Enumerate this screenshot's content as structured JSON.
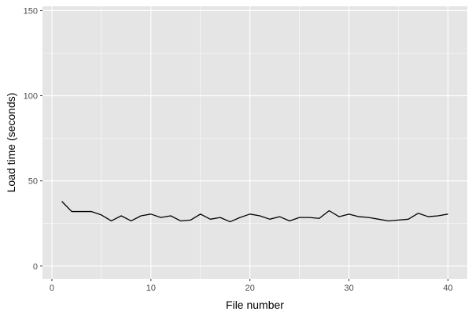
{
  "chart_data": {
    "type": "line",
    "title": "",
    "xlabel": "File number",
    "ylabel": "Load time (seconds)",
    "xlim": [
      -0.95,
      41.95
    ],
    "ylim": [
      -7.5,
      152.5
    ],
    "x_ticks": [
      0,
      10,
      20,
      30,
      40
    ],
    "y_ticks": [
      0,
      50,
      100,
      150
    ],
    "x_tick_labels": [
      "0",
      "10",
      "20",
      "30",
      "40"
    ],
    "y_tick_labels": [
      "0",
      "50",
      "100",
      "150"
    ],
    "grid": true,
    "legend": "none",
    "colors": {
      "panel_background": "#e5e5e5",
      "grid_major": "#ffffff",
      "line": "#000000",
      "tick_text": "#4d4d4d"
    },
    "series": [
      {
        "x": [
          1,
          2,
          3,
          4,
          5,
          6,
          7,
          8,
          9,
          10,
          11,
          12,
          13,
          14,
          15,
          16,
          17,
          18,
          19,
          20,
          21,
          22,
          23,
          24,
          25,
          26,
          27,
          28,
          29,
          30,
          31,
          32,
          33,
          34,
          35,
          36,
          37,
          38,
          39,
          40
        ],
        "values": [
          38.0,
          32.0,
          32.0,
          32.0,
          30.0,
          26.5,
          29.5,
          26.5,
          29.5,
          30.5,
          28.5,
          29.5,
          26.5,
          27.0,
          30.5,
          27.5,
          28.5,
          26.0,
          28.5,
          30.5,
          29.5,
          27.5,
          29.0,
          26.5,
          28.5,
          28.5,
          28.0,
          32.5,
          29.0,
          30.5,
          29.0,
          28.5,
          27.5,
          26.5,
          27.0,
          27.5,
          31.0,
          29.0,
          29.5,
          30.5
        ]
      }
    ]
  }
}
